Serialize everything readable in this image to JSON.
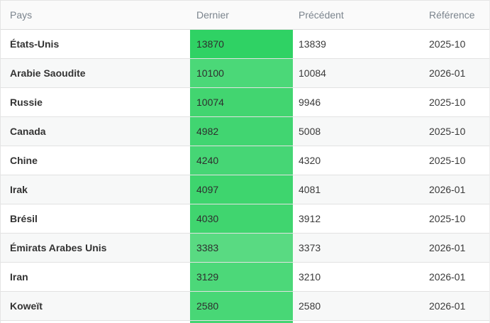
{
  "table": {
    "headers": {
      "pays": "Pays",
      "dernier": "Dernier",
      "precedent": "Précédent",
      "reference": "Référence"
    },
    "rows": [
      {
        "country": "États-Unis",
        "dernier": "13870",
        "precedent": "13839",
        "reference": "2025-10",
        "dernier_bg": "#2fd264"
      },
      {
        "country": "Arabie Saoudite",
        "dernier": "10100",
        "precedent": "10084",
        "reference": "2026-01",
        "dernier_bg": "#4bd878"
      },
      {
        "country": "Russie",
        "dernier": "10074",
        "precedent": "9946",
        "reference": "2025-10",
        "dernier_bg": "#42d570"
      },
      {
        "country": "Canada",
        "dernier": "4982",
        "precedent": "5008",
        "reference": "2025-10",
        "dernier_bg": "#41d571"
      },
      {
        "country": "Chine",
        "dernier": "4240",
        "precedent": "4320",
        "reference": "2025-10",
        "dernier_bg": "#46d675"
      },
      {
        "country": "Irak",
        "dernier": "4097",
        "precedent": "4081",
        "reference": "2026-01",
        "dernier_bg": "#3ed56e"
      },
      {
        "country": "Brésil",
        "dernier": "4030",
        "precedent": "3912",
        "reference": "2025-10",
        "dernier_bg": "#40d56f"
      },
      {
        "country": "Émirats Arabes Unis",
        "dernier": "3383",
        "precedent": "3373",
        "reference": "2026-01",
        "dernier_bg": "#59da82"
      },
      {
        "country": "Iran",
        "dernier": "3129",
        "precedent": "3210",
        "reference": "2026-01",
        "dernier_bg": "#4cd879"
      },
      {
        "country": "Koweït",
        "dernier": "2580",
        "precedent": "2580",
        "reference": "2026-01",
        "dernier_bg": "#48d776"
      }
    ],
    "partial_row": {
      "dernier_bg": "#42d571"
    }
  },
  "colors": {
    "accent_green": "#3ed56e",
    "header_text": "#7b848d",
    "body_text": "#333333",
    "row_border": "#e2e2e2"
  }
}
